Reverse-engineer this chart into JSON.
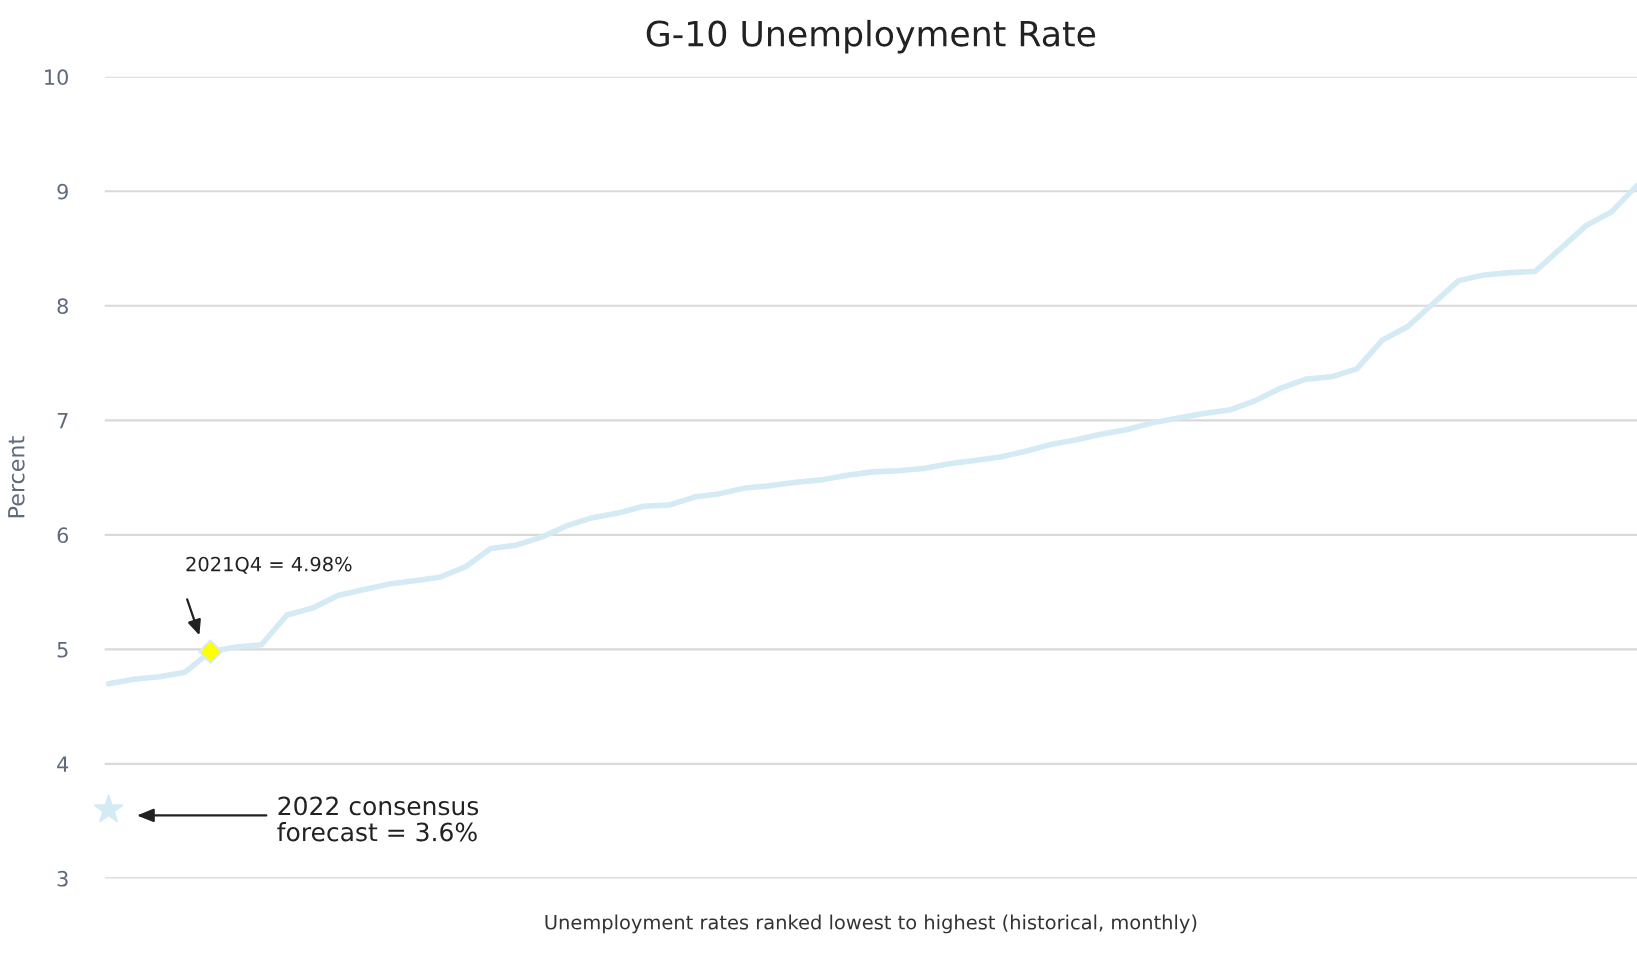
{
  "chart_data": {
    "type": "line",
    "title": "G-10 Unemployment Rate",
    "xlabel": "Unemployment rates ranked lowest to highest (historical, monthly)",
    "ylabel": "Percent",
    "categories": [
      null,
      null,
      null,
      null,
      null,
      null,
      null,
      null,
      null,
      null,
      null,
      null,
      null,
      null,
      null,
      null,
      null,
      null,
      null,
      null,
      null,
      null,
      null,
      null,
      null,
      null,
      null,
      null,
      null,
      null,
      null,
      null,
      null,
      null,
      null,
      null,
      null,
      null,
      null,
      null,
      null,
      null,
      null,
      null,
      null,
      null,
      null,
      null,
      null,
      null,
      null,
      null,
      null,
      null,
      null,
      null,
      null,
      null,
      null,
      null,
      null
    ],
    "series": [
      {
        "color": "#d4eaf4",
        "values": [
          4.7,
          4.74,
          4.76,
          4.8,
          4.98,
          5.02,
          5.04,
          5.3,
          5.36,
          5.47,
          5.52,
          5.57,
          5.6,
          5.63,
          5.72,
          5.88,
          5.91,
          5.98,
          6.08,
          6.15,
          6.19,
          6.25,
          6.26,
          6.33,
          6.36,
          6.41,
          6.43,
          6.46,
          6.48,
          6.52,
          6.55,
          6.56,
          6.58,
          6.62,
          6.65,
          6.68,
          6.73,
          6.79,
          6.83,
          6.88,
          6.92,
          6.98,
          7.02,
          7.06,
          7.09,
          7.17,
          7.28,
          7.36,
          7.38,
          7.45,
          7.7,
          7.82,
          8.02,
          8.22,
          8.27,
          8.29,
          8.3,
          8.5,
          8.7,
          8.82,
          9.05
        ]
      },
      {
        "type": "scatter",
        "marker": "diamond",
        "color": "#ffff00",
        "values": [
          null,
          null,
          null,
          null,
          4.98,
          null,
          null,
          null,
          null,
          null,
          null,
          null,
          null,
          null,
          null,
          null,
          null,
          null,
          null,
          null,
          null,
          null,
          null,
          null,
          null,
          null,
          null,
          null,
          null,
          null,
          null,
          null,
          null,
          null,
          null,
          null,
          null,
          null,
          null,
          null,
          null,
          null,
          null,
          null,
          null,
          null,
          null,
          null,
          null,
          null,
          null,
          null,
          null,
          null,
          null,
          null,
          null,
          null,
          null,
          null,
          null
        ]
      },
      {
        "type": "scatter",
        "marker": "star",
        "color": "#d4eaf4",
        "values": [
          3.6,
          null,
          null,
          null,
          null,
          null,
          null,
          null,
          null,
          null,
          null,
          null,
          null,
          null,
          null,
          null,
          null,
          null,
          null,
          null,
          null,
          null,
          null,
          null,
          null,
          null,
          null,
          null,
          null,
          null,
          null,
          null,
          null,
          null,
          null,
          null,
          null,
          null,
          null,
          null,
          null,
          null,
          null,
          null,
          null,
          null,
          null,
          null,
          null,
          null,
          null,
          null,
          null,
          null,
          null,
          null,
          null,
          null,
          null,
          null,
          null
        ]
      }
    ],
    "annotations": [
      "2021Q4 = 4.98%",
      "2022 consensus\nforecast = 3.6%"
    ],
    "ylim": [
      3,
      10
    ],
    "yticks": [
      3,
      4,
      5,
      6,
      7,
      8,
      9,
      10
    ],
    "grid": "y",
    "tick_labels": "y"
  }
}
